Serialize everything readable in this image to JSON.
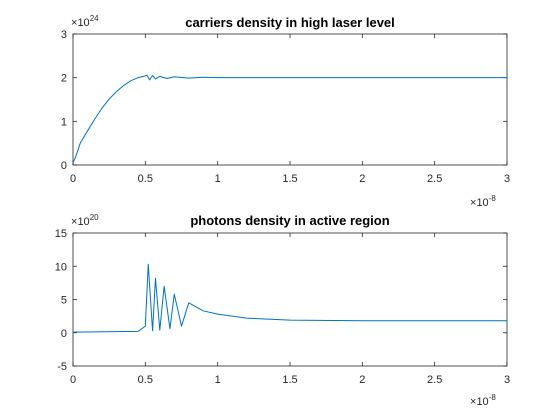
{
  "chart_data": [
    {
      "type": "line",
      "title": "carriers density in high laser level",
      "xlabel": "",
      "ylabel": "",
      "xlim": [
        0,
        3
      ],
      "ylim": [
        0,
        3
      ],
      "x_multiplier": "10",
      "x_exponent": "-8",
      "y_multiplier": "10",
      "y_exponent": "24",
      "x_ticks": [
        "0",
        "0.5",
        "1",
        "1.5",
        "2",
        "2.5",
        "3"
      ],
      "y_ticks": [
        "0",
        "1",
        "2",
        "3"
      ],
      "grid": false,
      "series": [
        {
          "color": "#0072BD",
          "x": [
            0,
            0.02,
            0.05,
            0.1,
            0.15,
            0.2,
            0.25,
            0.3,
            0.35,
            0.4,
            0.45,
            0.5,
            0.51,
            0.53,
            0.55,
            0.57,
            0.6,
            0.65,
            0.7,
            0.8,
            0.9,
            1.0,
            1.2,
            1.4,
            1.6,
            2.0,
            2.5,
            3.0
          ],
          "y": [
            0.05,
            0.2,
            0.5,
            0.78,
            1.05,
            1.3,
            1.51,
            1.68,
            1.82,
            1.93,
            2.0,
            2.04,
            2.06,
            1.95,
            2.05,
            1.97,
            2.03,
            1.98,
            2.02,
            1.99,
            2.01,
            2.0,
            2.0,
            2.0,
            2.0,
            2.0,
            2.0,
            2.0
          ]
        }
      ]
    },
    {
      "type": "line",
      "title": "photons density in active region",
      "xlabel": "",
      "ylabel": "",
      "xlim": [
        0,
        3
      ],
      "ylim": [
        -5,
        15
      ],
      "x_multiplier": "10",
      "x_exponent": "-8",
      "y_multiplier": "10",
      "y_exponent": "20",
      "x_ticks": [
        "0",
        "0.5",
        "1",
        "1.5",
        "2",
        "2.5",
        "3"
      ],
      "y_ticks": [
        "-5",
        "0",
        "5",
        "10",
        "15"
      ],
      "grid": false,
      "series": [
        {
          "color": "#0072BD",
          "x": [
            0,
            0.45,
            0.5,
            0.52,
            0.55,
            0.57,
            0.6,
            0.63,
            0.67,
            0.7,
            0.75,
            0.8,
            0.9,
            1.0,
            1.2,
            1.5,
            2.0,
            2.5,
            3.0
          ],
          "y": [
            0.1,
            0.2,
            1.0,
            10.3,
            0.3,
            8.2,
            0.4,
            7.0,
            0.6,
            5.8,
            1.0,
            4.5,
            3.3,
            2.8,
            2.2,
            1.9,
            1.8,
            1.8,
            1.8
          ]
        }
      ]
    }
  ]
}
